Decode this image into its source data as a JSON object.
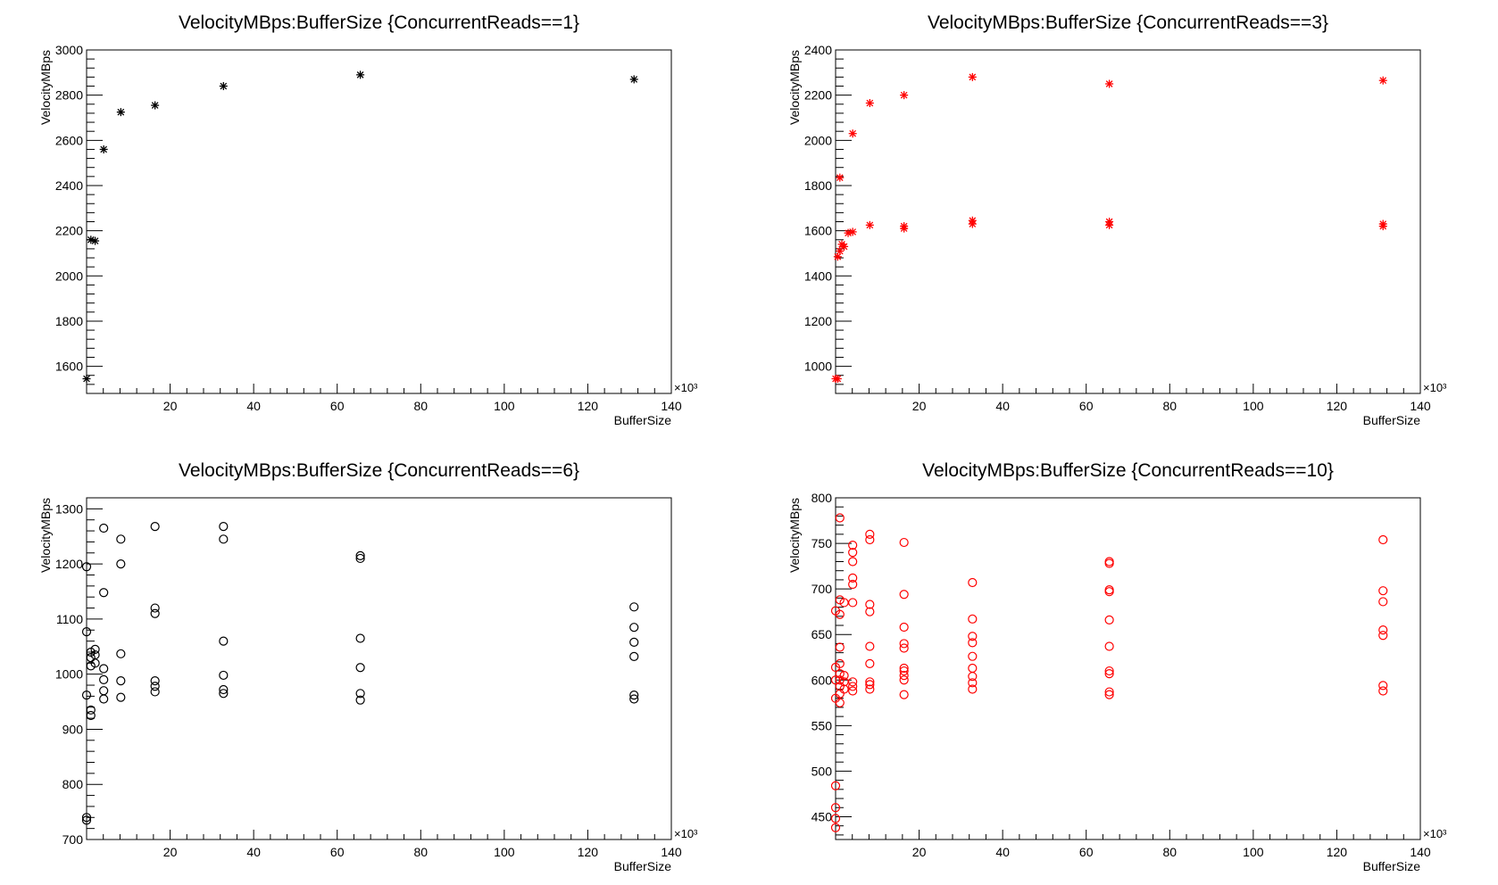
{
  "chart_data": [
    {
      "type": "scatter",
      "title": "VelocityMBps:BufferSize {ConcurrentReads==1}",
      "xlabel": "BufferSize",
      "ylabel": "VelocityMBps",
      "x_multiplier_label": "×10³",
      "xlim": [
        0,
        140
      ],
      "ylim": [
        1480,
        3000
      ],
      "xticks": [
        20,
        40,
        60,
        80,
        100,
        120,
        140
      ],
      "yticks": [
        1600,
        1800,
        2000,
        2200,
        2400,
        2600,
        2800,
        3000
      ],
      "marker": "star",
      "color": "#000000",
      "points": [
        [
          0,
          1545
        ],
        [
          1.024,
          2160
        ],
        [
          2.048,
          2155
        ],
        [
          4.096,
          2560
        ],
        [
          8.192,
          2725
        ],
        [
          16.384,
          2755
        ],
        [
          32.768,
          2840
        ],
        [
          65.536,
          2890
        ],
        [
          131.072,
          2870
        ]
      ]
    },
    {
      "type": "scatter",
      "title": "VelocityMBps:BufferSize {ConcurrentReads==3}",
      "xlabel": "BufferSize",
      "ylabel": "VelocityMBps",
      "x_multiplier_label": "×10³",
      "xlim": [
        0,
        140
      ],
      "ylim": [
        880,
        2400
      ],
      "xticks": [
        20,
        40,
        60,
        80,
        100,
        120,
        140
      ],
      "yticks": [
        1000,
        1200,
        1400,
        1600,
        1800,
        2000,
        2200,
        2400
      ],
      "marker": "star",
      "color": "#ff0000",
      "points": [
        [
          0,
          945
        ],
        [
          0.5,
          945
        ],
        [
          0.5,
          1485
        ],
        [
          1.024,
          1510
        ],
        [
          1.024,
          1835
        ],
        [
          1.5,
          1540
        ],
        [
          2.048,
          1530
        ],
        [
          3,
          1590
        ],
        [
          4.096,
          1595
        ],
        [
          4.096,
          2030
        ],
        [
          8.192,
          1625
        ],
        [
          8.192,
          2165
        ],
        [
          16.384,
          1610
        ],
        [
          16.384,
          1620
        ],
        [
          16.384,
          2200
        ],
        [
          32.768,
          1630
        ],
        [
          32.768,
          1645
        ],
        [
          32.768,
          2280
        ],
        [
          65.536,
          1625
        ],
        [
          65.536,
          1640
        ],
        [
          65.536,
          2250
        ],
        [
          131.072,
          1620
        ],
        [
          131.072,
          1630
        ],
        [
          131.072,
          2265
        ]
      ]
    },
    {
      "type": "scatter",
      "title": "VelocityMBps:BufferSize {ConcurrentReads==6}",
      "xlabel": "BufferSize",
      "ylabel": "VelocityMBps",
      "x_multiplier_label": "×10³",
      "xlim": [
        0,
        140
      ],
      "ylim": [
        700,
        1320
      ],
      "xticks": [
        20,
        40,
        60,
        80,
        100,
        120,
        140
      ],
      "yticks": [
        700,
        800,
        900,
        1000,
        1100,
        1200,
        1300
      ],
      "marker": "circle",
      "color": "#000000",
      "points": [
        [
          0,
          735
        ],
        [
          0,
          740
        ],
        [
          0,
          962
        ],
        [
          0,
          1077
        ],
        [
          0,
          1195
        ],
        [
          1.024,
          925
        ],
        [
          1.024,
          935
        ],
        [
          1.024,
          1015
        ],
        [
          1.024,
          1030
        ],
        [
          1.024,
          1040
        ],
        [
          2.048,
          1020
        ],
        [
          2.048,
          1035
        ],
        [
          2.048,
          1045
        ],
        [
          4.096,
          955
        ],
        [
          4.096,
          970
        ],
        [
          4.096,
          990
        ],
        [
          4.096,
          1010
        ],
        [
          4.096,
          1148
        ],
        [
          4.096,
          1265
        ],
        [
          8.192,
          958
        ],
        [
          8.192,
          988
        ],
        [
          8.192,
          1037
        ],
        [
          8.192,
          1200
        ],
        [
          8.192,
          1245
        ],
        [
          16.384,
          968
        ],
        [
          16.384,
          978
        ],
        [
          16.384,
          988
        ],
        [
          16.384,
          1110
        ],
        [
          16.384,
          1120
        ],
        [
          16.384,
          1268
        ],
        [
          32.768,
          965
        ],
        [
          32.768,
          972
        ],
        [
          32.768,
          998
        ],
        [
          32.768,
          1060
        ],
        [
          32.768,
          1245
        ],
        [
          32.768,
          1268
        ],
        [
          65.536,
          953
        ],
        [
          65.536,
          965
        ],
        [
          65.536,
          1012
        ],
        [
          65.536,
          1065
        ],
        [
          65.536,
          1210
        ],
        [
          65.536,
          1215
        ],
        [
          131.072,
          955
        ],
        [
          131.072,
          962
        ],
        [
          131.072,
          1032
        ],
        [
          131.072,
          1058
        ],
        [
          131.072,
          1085
        ],
        [
          131.072,
          1122
        ]
      ]
    },
    {
      "type": "scatter",
      "title": "VelocityMBps:BufferSize {ConcurrentReads==10}",
      "xlabel": "BufferSize",
      "ylabel": "VelocityMBps",
      "x_multiplier_label": "×10³",
      "xlim": [
        0,
        140
      ],
      "ylim": [
        425,
        800
      ],
      "xticks": [
        20,
        40,
        60,
        80,
        100,
        120,
        140
      ],
      "yticks": [
        450,
        500,
        550,
        600,
        650,
        700,
        750,
        800
      ],
      "marker": "circle",
      "color": "#ff0000",
      "points": [
        [
          0,
          438
        ],
        [
          0,
          448
        ],
        [
          0,
          460
        ],
        [
          0,
          484
        ],
        [
          0,
          580
        ],
        [
          0,
          600
        ],
        [
          0,
          614
        ],
        [
          0,
          676
        ],
        [
          1.024,
          575
        ],
        [
          1.024,
          585
        ],
        [
          1.024,
          593
        ],
        [
          1.024,
          600
        ],
        [
          1.024,
          607
        ],
        [
          1.024,
          618
        ],
        [
          1.024,
          636
        ],
        [
          1.024,
          672
        ],
        [
          1.024,
          688
        ],
        [
          1.024,
          778
        ],
        [
          2.048,
          590
        ],
        [
          2.048,
          598
        ],
        [
          2.048,
          605
        ],
        [
          2.048,
          685
        ],
        [
          4.096,
          588
        ],
        [
          4.096,
          593
        ],
        [
          4.096,
          598
        ],
        [
          4.096,
          685
        ],
        [
          4.096,
          705
        ],
        [
          4.096,
          712
        ],
        [
          4.096,
          730
        ],
        [
          4.096,
          740
        ],
        [
          4.096,
          748
        ],
        [
          8.192,
          590
        ],
        [
          8.192,
          595
        ],
        [
          8.192,
          598
        ],
        [
          8.192,
          618
        ],
        [
          8.192,
          637
        ],
        [
          8.192,
          675
        ],
        [
          8.192,
          683
        ],
        [
          8.192,
          754
        ],
        [
          8.192,
          760
        ],
        [
          16.384,
          584
        ],
        [
          16.384,
          600
        ],
        [
          16.384,
          605
        ],
        [
          16.384,
          610
        ],
        [
          16.384,
          613
        ],
        [
          16.384,
          635
        ],
        [
          16.384,
          640
        ],
        [
          16.384,
          658
        ],
        [
          16.384,
          694
        ],
        [
          16.384,
          751
        ],
        [
          32.768,
          590
        ],
        [
          32.768,
          597
        ],
        [
          32.768,
          604
        ],
        [
          32.768,
          613
        ],
        [
          32.768,
          626
        ],
        [
          32.768,
          641
        ],
        [
          32.768,
          648
        ],
        [
          32.768,
          667
        ],
        [
          32.768,
          707
        ],
        [
          65.536,
          584
        ],
        [
          65.536,
          587
        ],
        [
          65.536,
          607
        ],
        [
          65.536,
          610
        ],
        [
          65.536,
          637
        ],
        [
          65.536,
          666
        ],
        [
          65.536,
          697
        ],
        [
          65.536,
          699
        ],
        [
          65.536,
          728
        ],
        [
          65.536,
          730
        ],
        [
          131.072,
          588
        ],
        [
          131.072,
          594
        ],
        [
          131.072,
          649
        ],
        [
          131.072,
          655
        ],
        [
          131.072,
          686
        ],
        [
          131.072,
          698
        ],
        [
          131.072,
          754
        ]
      ]
    }
  ]
}
